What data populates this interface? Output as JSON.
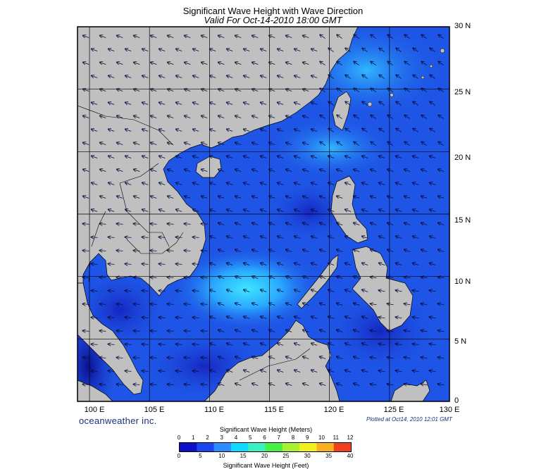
{
  "title": "Significant Wave Height with Wave Direction",
  "subtitle": "Valid For Oct-14-2010 18:00 GMT",
  "axes": {
    "lon_labels": [
      "100 E",
      "105 E",
      "110 E",
      "115 E",
      "120 E",
      "125 E",
      "130 E"
    ],
    "lat_labels": [
      "30 N",
      "25 N",
      "20 N",
      "15 N",
      "10 N",
      "5 N",
      "0"
    ],
    "lon_range": [
      99,
      130
    ],
    "lat_range": [
      0,
      30
    ]
  },
  "branding": {
    "company": "oceanweather inc.",
    "plotted": "Plotted at Oct14, 2010 12:01 GMT"
  },
  "legend": {
    "title_meters": "Significant Wave Height (Meters)",
    "title_feet": "Significant Wave Height (Feet)",
    "meter_ticks": [
      "0",
      "1",
      "2",
      "3",
      "4",
      "5",
      "6",
      "7",
      "8",
      "9",
      "10",
      "11",
      "12"
    ],
    "feet_ticks": [
      "0",
      "5",
      "10",
      "15",
      "20",
      "25",
      "30",
      "35",
      "40"
    ],
    "colors": [
      "#1010c8",
      "#1e46ee",
      "#2f8cff",
      "#14d8ff",
      "#38f0c0",
      "#46f046",
      "#a8f030",
      "#f0f020",
      "#f8b020",
      "#f04020"
    ]
  },
  "colors": {
    "land": "#c0c0c0",
    "sea_base": "#1e55e6",
    "sea_calm": "#0d1ab0",
    "sea_rough": "#2cd0ff",
    "arrow": "#0a0a3a",
    "grid": "#000000"
  },
  "map_features": {
    "arrow_direction": "northeast monsoon, generally toward southwest",
    "region": "South China Sea"
  }
}
